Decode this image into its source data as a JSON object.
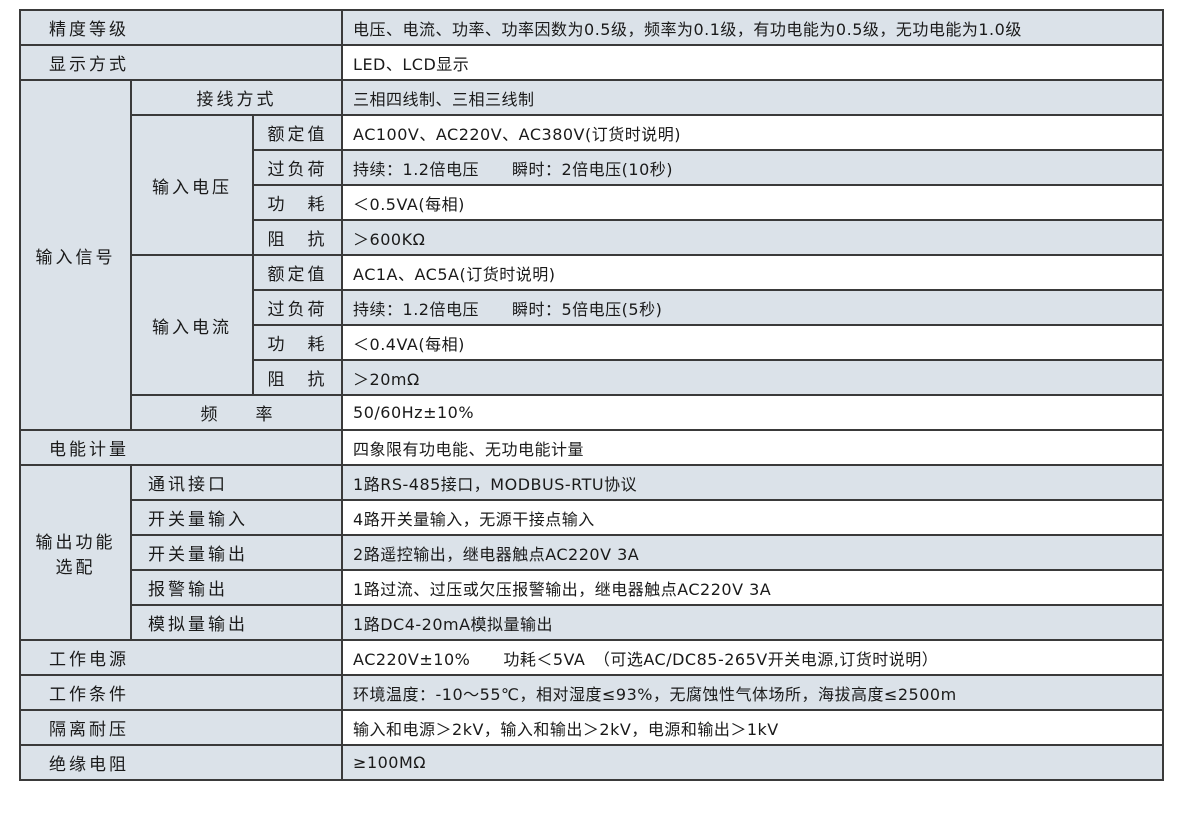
{
  "rows": {
    "accuracy": {
      "label": "精度等级",
      "value": "电压、电流、功率、功率因数为0.5级，频率为0.1级，有功电能为0.5级，无功电能为1.0级"
    },
    "display": {
      "label": "显示方式",
      "value": "LED、LCD显示"
    },
    "input_signal": {
      "label": "输入信号",
      "wiring": {
        "label": "接线方式",
        "value": "三相四线制、三相三线制"
      },
      "voltage": {
        "label": "输入电压",
        "rated": {
          "label": "额定值",
          "value": "AC100V、AC220V、AC380V(订货时说明)"
        },
        "overload": {
          "label": "过负荷",
          "value": "持续：1.2倍电压　　瞬时：2倍电压(10秒)"
        },
        "power": {
          "label": "功　耗",
          "value": "＜0.5VA(每相)"
        },
        "impedance": {
          "label": "阻　抗",
          "value": "＞600KΩ"
        }
      },
      "current": {
        "label": "输入电流",
        "rated": {
          "label": "额定值",
          "value": "AC1A、AC5A(订货时说明)"
        },
        "overload": {
          "label": "过负荷",
          "value": "持续：1.2倍电压　　瞬时：5倍电压(5秒)"
        },
        "power": {
          "label": "功　耗",
          "value": "＜0.4VA(每相)"
        },
        "impedance": {
          "label": "阻　抗",
          "value": "＞20mΩ"
        }
      },
      "frequency": {
        "label": "频率",
        "value": "50/60Hz±10%"
      }
    },
    "energy": {
      "label": "电能计量",
      "value": "四象限有功电能、无功电能计量"
    },
    "output": {
      "label_line1": "输出功能",
      "label_line2": "选配",
      "comm": {
        "label": "通讯接口",
        "value": "1路RS-485接口，MODBUS-RTU协议"
      },
      "di": {
        "label": "开关量输入",
        "value": "4路开关量输入，无源干接点输入"
      },
      "do": {
        "label": "开关量输出",
        "value": "2路遥控输出，继电器触点AC220V 3A"
      },
      "alarm": {
        "label": "报警输出",
        "value": "1路过流、过压或欠压报警输出，继电器触点AC220V 3A"
      },
      "analog": {
        "label": "模拟量输出",
        "value": "1路DC4-20mA模拟量输出"
      }
    },
    "power_supply": {
      "label": "工作电源",
      "value": "AC220V±10%　　功耗＜5VA　（可选AC/DC85-265V开关电源,订货时说明）"
    },
    "conditions": {
      "label": "工作条件",
      "value": "环境温度：-10～55℃，相对湿度≤93%，无腐蚀性气体场所，海拔高度≤2500m"
    },
    "isolation": {
      "label": "隔离耐压",
      "value": "输入和电源＞2kV，输入和输出＞2kV，电源和输出＞1kV"
    },
    "insulation": {
      "label": "绝缘电阻",
      "value": "≥100MΩ"
    }
  },
  "colors": {
    "label_bg": "#dbe2e9",
    "border": "#3a3a3a"
  }
}
